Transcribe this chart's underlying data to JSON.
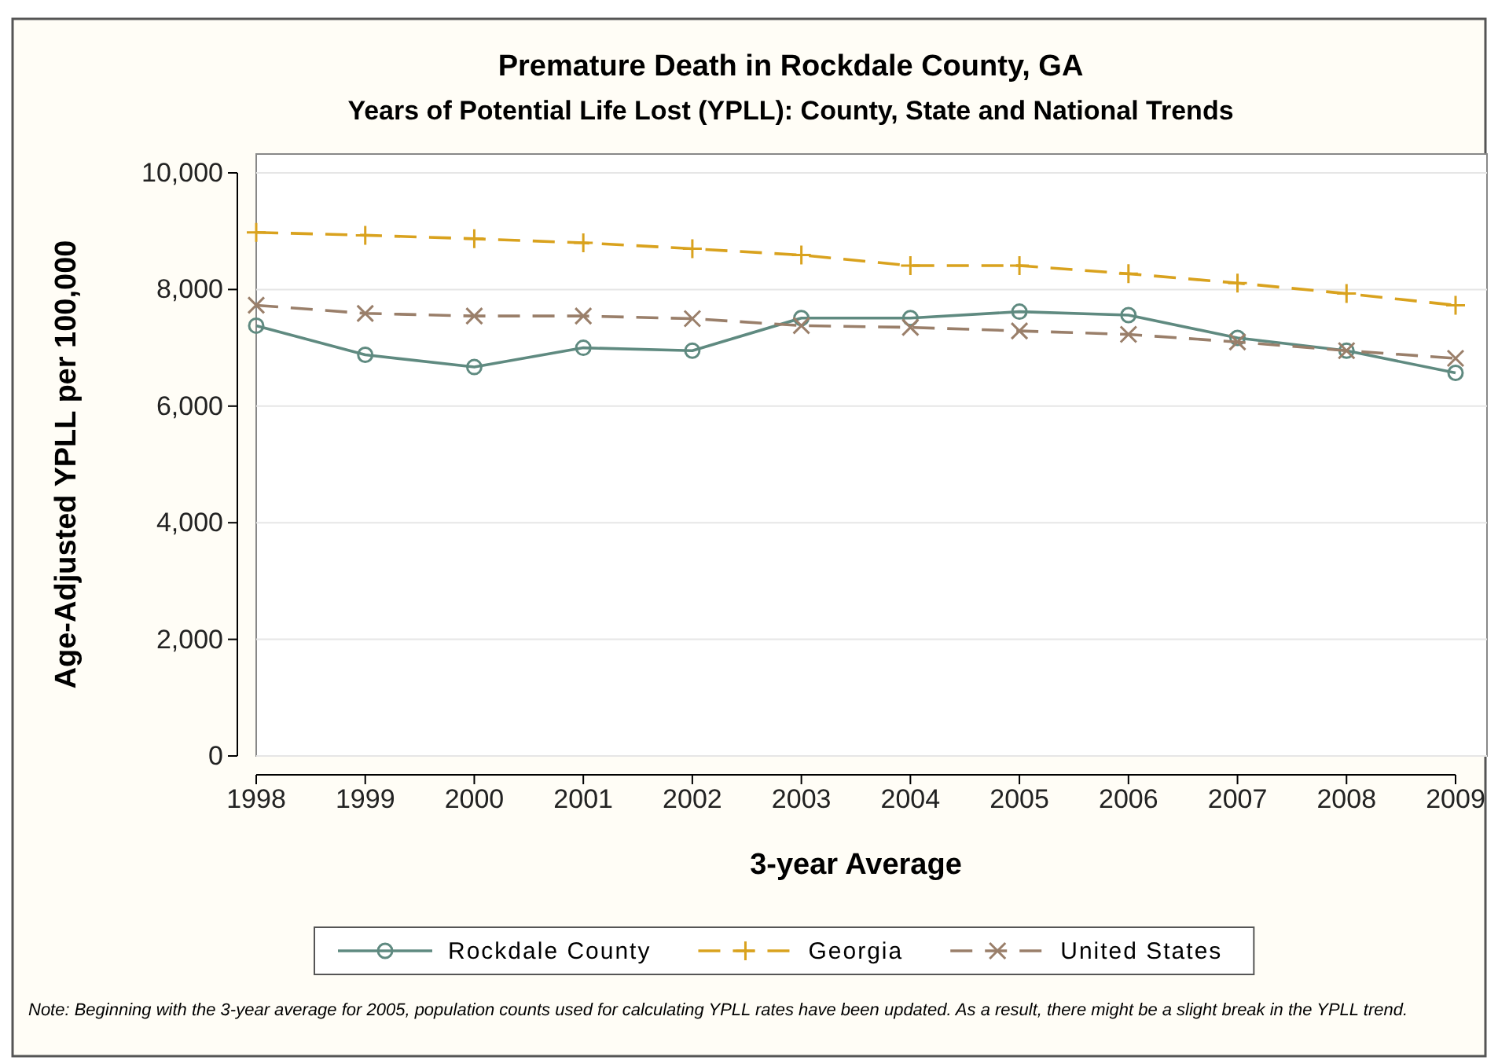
{
  "chart_data": {
    "type": "line",
    "title": "Premature Death in Rockdale County, GA",
    "subtitle": "Years of Potential Life Lost (YPLL): County, State and National Trends",
    "xlabel": "3-year Average",
    "ylabel": "Age-Adjusted YPLL per 100,000",
    "x": [
      1998,
      1999,
      2000,
      2001,
      2002,
      2003,
      2004,
      2005,
      2006,
      2007,
      2008,
      2009
    ],
    "xlim": [
      1998,
      2009
    ],
    "xticks": [
      1998,
      1999,
      2000,
      2001,
      2002,
      2003,
      2004,
      2005,
      2006,
      2007,
      2008,
      2009
    ],
    "ylim": [
      0,
      10000
    ],
    "yticks": [
      {
        "value": 0,
        "label": "0"
      },
      {
        "value": 2000,
        "label": "2,000"
      },
      {
        "value": 4000,
        "label": "4,000"
      },
      {
        "value": 6000,
        "label": "6,000"
      },
      {
        "value": 8000,
        "label": "8,000"
      },
      {
        "value": 10000,
        "label": "10,000"
      }
    ],
    "grid": "y",
    "legend": "bottom",
    "series": [
      {
        "name": "Rockdale County",
        "color": "#5f8a80",
        "marker": "circle",
        "line_style": "solid",
        "values": [
          7380,
          6880,
          6670,
          7000,
          6950,
          7510,
          7510,
          7620,
          7560,
          7170,
          6950,
          6570
        ]
      },
      {
        "name": "Georgia",
        "color": "#d9a21e",
        "marker": "cross",
        "line_style": "dashed",
        "values": [
          8980,
          8930,
          8870,
          8800,
          8700,
          8590,
          8410,
          8410,
          8270,
          8110,
          7930,
          7730
        ]
      },
      {
        "name": "United States",
        "color": "#9a7f6a",
        "marker": "x",
        "line_style": "dashed",
        "values": [
          7730,
          7590,
          7545,
          7545,
          7500,
          7380,
          7350,
          7290,
          7230,
          7100,
          6950,
          6820
        ]
      }
    ],
    "annotations": [
      "Note: Beginning with the 3-year average for 2005, population counts used for calculating YPLL rates have been updated. As a result, there might be a slight break in the YPLL trend."
    ]
  }
}
